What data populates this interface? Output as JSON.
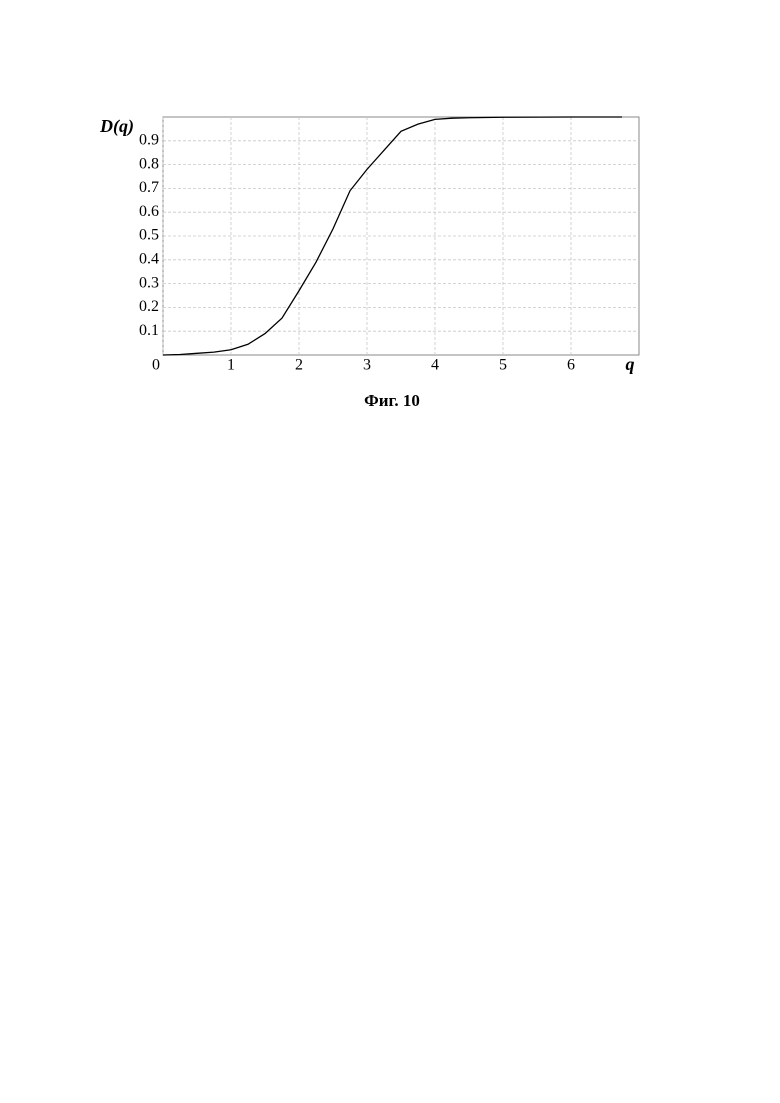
{
  "chart_data": {
    "type": "line",
    "ylabel": "D(q)",
    "xlabel": "q",
    "caption": "Фиг. 10",
    "x": [
      0,
      0.25,
      0.5,
      0.75,
      1.0,
      1.25,
      1.5,
      1.75,
      2.0,
      2.25,
      2.5,
      2.75,
      3.0,
      3.25,
      3.5,
      3.75,
      4.0,
      4.25,
      4.5,
      5.0,
      6.0,
      6.75
    ],
    "series": [
      {
        "color": "#000000",
        "values": [
          0,
          0.002,
          0.007,
          0.012,
          0.022,
          0.045,
          0.09,
          0.155,
          0.27,
          0.39,
          0.53,
          0.69,
          0.78,
          0.86,
          0.94,
          0.97,
          0.99,
          0.995,
          0.997,
          0.999,
          1.0,
          1.0
        ]
      }
    ],
    "xlim": [
      0,
      7
    ],
    "ylim": [
      0,
      1
    ],
    "xticks": [
      0,
      1,
      2,
      3,
      4,
      5,
      6
    ],
    "yticks": [
      0.1,
      0.2,
      0.3,
      0.4,
      0.5,
      0.6,
      0.7,
      0.8,
      0.9
    ],
    "grid": true
  }
}
